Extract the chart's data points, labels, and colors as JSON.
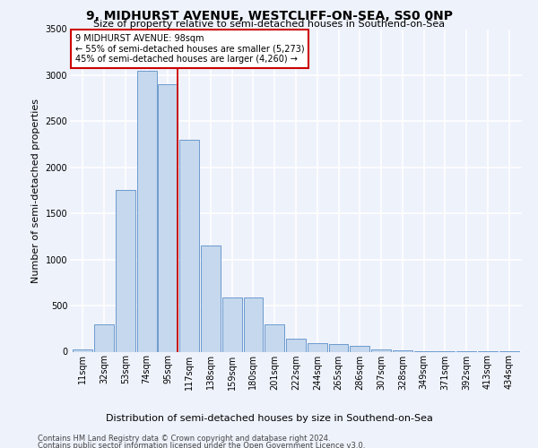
{
  "title": "9, MIDHURST AVENUE, WESTCLIFF-ON-SEA, SS0 0NP",
  "subtitle": "Size of property relative to semi-detached houses in Southend-on-Sea",
  "xlabel": "Distribution of semi-detached houses by size in Southend-on-Sea",
  "ylabel": "Number of semi-detached properties",
  "categories": [
    "11sqm",
    "32sqm",
    "53sqm",
    "74sqm",
    "95sqm",
    "117sqm",
    "138sqm",
    "159sqm",
    "180sqm",
    "201sqm",
    "222sqm",
    "244sqm",
    "265sqm",
    "286sqm",
    "307sqm",
    "328sqm",
    "349sqm",
    "371sqm",
    "392sqm",
    "413sqm",
    "434sqm"
  ],
  "values": [
    25,
    300,
    1750,
    3050,
    2900,
    2300,
    1150,
    590,
    590,
    295,
    140,
    90,
    80,
    60,
    20,
    10,
    5,
    4,
    3,
    2,
    2
  ],
  "bar_color": "#c5d8ed",
  "bar_edge_color": "#5b8fc9",
  "vline_color": "#cc0000",
  "annotation_text": "9 MIDHURST AVENUE: 98sqm\n← 55% of semi-detached houses are smaller (5,273)\n45% of semi-detached houses are larger (4,260) →",
  "ylim": [
    0,
    3500
  ],
  "yticks": [
    0,
    500,
    1000,
    1500,
    2000,
    2500,
    3000,
    3500
  ],
  "footnote1": "Contains HM Land Registry data © Crown copyright and database right 2024.",
  "footnote2": "Contains public sector information licensed under the Open Government Licence v3.0.",
  "bg_color": "#eef2fb",
  "grid_color": "#ffffff",
  "title_fontsize": 10,
  "subtitle_fontsize": 8,
  "ylabel_fontsize": 8,
  "xlabel_fontsize": 8,
  "tick_fontsize": 7,
  "annot_fontsize": 7
}
